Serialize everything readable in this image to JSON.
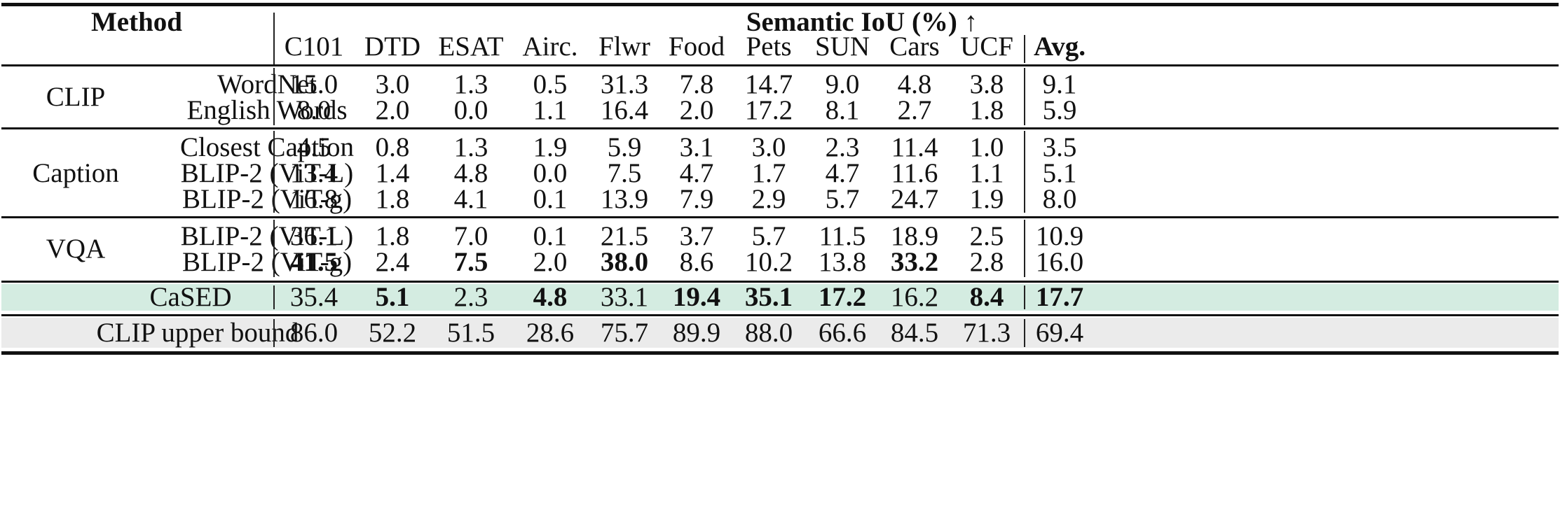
{
  "header": {
    "method": "Method",
    "semantic_iou": "Semantic IoU (%) ↑",
    "columns": [
      "C101",
      "DTD",
      "ESAT",
      "Airc.",
      "Flwr",
      "Food",
      "Pets",
      "SUN",
      "Cars",
      "UCF",
      "Avg."
    ]
  },
  "groups": [
    {
      "name": "CLIP",
      "rows": [
        {
          "method": "WordNet",
          "values": [
            "15.0",
            "3.0",
            "1.3",
            "0.5",
            "31.3",
            "7.8",
            "14.7",
            "9.0",
            "4.8",
            "3.8",
            "9.1"
          ],
          "bold": []
        },
        {
          "method": "English Words",
          "values": [
            "8.0",
            "2.0",
            "0.0",
            "1.1",
            "16.4",
            "2.0",
            "17.2",
            "8.1",
            "2.7",
            "1.8",
            "5.9"
          ],
          "bold": []
        }
      ]
    },
    {
      "name": "Caption",
      "rows": [
        {
          "method": "Closest Caption",
          "values": [
            "4.5",
            "0.8",
            "1.3",
            "1.9",
            "5.9",
            "3.1",
            "3.0",
            "2.3",
            "11.4",
            "1.0",
            "3.5"
          ],
          "bold": []
        },
        {
          "method": "BLIP-2 (ViT-L)",
          "values": [
            "13.4",
            "1.4",
            "4.8",
            "0.0",
            "7.5",
            "4.7",
            "1.7",
            "4.7",
            "11.6",
            "1.1",
            "5.1"
          ],
          "bold": []
        },
        {
          "method": "BLIP-2 (ViT-g)",
          "values": [
            "16.8",
            "1.8",
            "4.1",
            "0.1",
            "13.9",
            "7.9",
            "2.9",
            "5.7",
            "24.7",
            "1.9",
            "8.0"
          ],
          "bold": []
        }
      ]
    },
    {
      "name": "VQA",
      "rows": [
        {
          "method": "BLIP-2 (ViT-L)",
          "values": [
            "36.1",
            "1.8",
            "7.0",
            "0.1",
            "21.5",
            "3.7",
            "5.7",
            "11.5",
            "18.9",
            "2.5",
            "10.9"
          ],
          "bold": []
        },
        {
          "method": "BLIP-2 (ViT-g)",
          "values": [
            "41.5",
            "2.4",
            "7.5",
            "2.0",
            "38.0",
            "8.6",
            "10.2",
            "13.8",
            "33.2",
            "2.8",
            "16.0"
          ],
          "bold": [
            0,
            2,
            4,
            8
          ]
        }
      ]
    }
  ],
  "cased": {
    "method": "CaSED",
    "values": [
      "35.4",
      "5.1",
      "2.3",
      "4.8",
      "33.1",
      "19.4",
      "35.1",
      "17.2",
      "16.2",
      "8.4",
      "17.7"
    ],
    "bold": [
      1,
      3,
      5,
      6,
      7,
      9,
      10
    ],
    "color": "#d4ece1"
  },
  "upper_bound": {
    "method": "CLIP upper bound",
    "values": [
      "86.0",
      "52.2",
      "51.5",
      "28.6",
      "75.7",
      "89.9",
      "88.0",
      "66.6",
      "84.5",
      "71.3",
      "69.4"
    ],
    "bold": [],
    "color": "#ebebeb"
  }
}
